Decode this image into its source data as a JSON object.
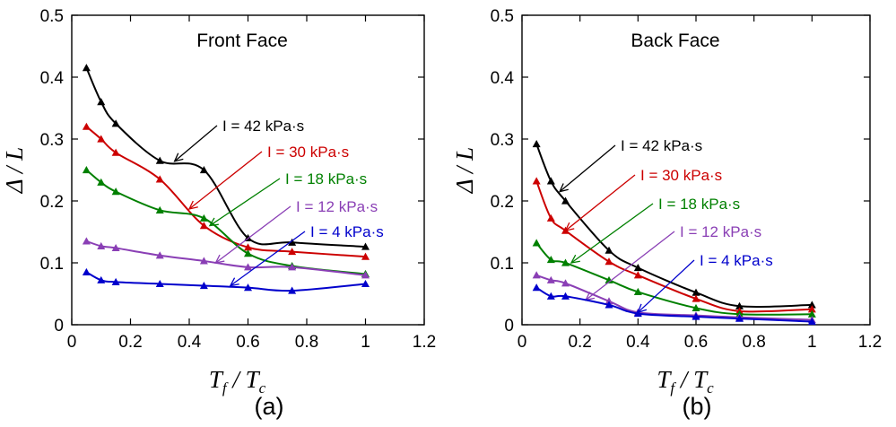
{
  "panels": [
    {
      "label": "(a)",
      "chart_data": {
        "type": "line",
        "title": "Front Face",
        "xlabel": "T_f / T_c",
        "ylabel": "Δ / L",
        "xlim": [
          0,
          1.2
        ],
        "ylim": [
          0,
          0.5
        ],
        "xticks": [
          "0",
          "0.2",
          "0.4",
          "0.6",
          "0.8",
          "1",
          "1.2"
        ],
        "yticks": [
          "0",
          "0.1",
          "0.2",
          "0.3",
          "0.4",
          "0.5"
        ],
        "grid": false,
        "marker": "triangle",
        "series": [
          {
            "name": "I = 42 kPa·s",
            "color": "#000000",
            "x": [
              0.05,
              0.1,
              0.15,
              0.3,
              0.45,
              0.6,
              0.75,
              1.0
            ],
            "y": [
              0.415,
              0.36,
              0.325,
              0.265,
              0.25,
              0.14,
              0.133,
              0.126
            ],
            "annotation_target": [
              0.35,
              0.264
            ]
          },
          {
            "name": "I = 30 kPa·s",
            "color": "#cc0000",
            "x": [
              0.05,
              0.1,
              0.15,
              0.3,
              0.45,
              0.6,
              0.75,
              1.0
            ],
            "y": [
              0.32,
              0.3,
              0.278,
              0.235,
              0.16,
              0.125,
              0.118,
              0.11
            ],
            "annotation_target": [
              0.4,
              0.187
            ]
          },
          {
            "name": "I = 18 kPa·s",
            "color": "#008000",
            "x": [
              0.05,
              0.1,
              0.15,
              0.3,
              0.45,
              0.6,
              0.75,
              1.0
            ],
            "y": [
              0.25,
              0.23,
              0.215,
              0.185,
              0.172,
              0.115,
              0.095,
              0.082
            ],
            "annotation_target": [
              0.47,
              0.16
            ]
          },
          {
            "name": "I = 12 kPa·s",
            "color": "#8a3fb5",
            "x": [
              0.05,
              0.1,
              0.15,
              0.3,
              0.45,
              0.6,
              0.75,
              1.0
            ],
            "y": [
              0.135,
              0.127,
              0.124,
              0.112,
              0.103,
              0.093,
              0.093,
              0.08
            ],
            "annotation_target": [
              0.49,
              0.1
            ]
          },
          {
            "name": "I = 4 kPa·s",
            "color": "#0000cc",
            "x": [
              0.05,
              0.1,
              0.15,
              0.3,
              0.45,
              0.6,
              0.75,
              1.0
            ],
            "y": [
              0.085,
              0.072,
              0.069,
              0.066,
              0.063,
              0.06,
              0.055,
              0.066
            ],
            "annotation_target": [
              0.54,
              0.063
            ]
          }
        ]
      }
    },
    {
      "label": "(b)",
      "chart_data": {
        "type": "line",
        "title": "Back Face",
        "xlabel": "T_f / T_c",
        "ylabel": "Δ / L",
        "xlim": [
          0,
          1.2
        ],
        "ylim": [
          0,
          0.5
        ],
        "xticks": [
          "0",
          "0.2",
          "0.4",
          "0.6",
          "0.8",
          "1",
          "1.2"
        ],
        "yticks": [
          "0",
          "0.1",
          "0.2",
          "0.3",
          "0.4",
          "0.5"
        ],
        "grid": false,
        "marker": "triangle",
        "series": [
          {
            "name": "I = 42 kPa·s",
            "color": "#000000",
            "x": [
              0.05,
              0.1,
              0.15,
              0.3,
              0.4,
              0.6,
              0.75,
              1.0
            ],
            "y": [
              0.292,
              0.232,
              0.2,
              0.12,
              0.092,
              0.052,
              0.03,
              0.032
            ],
            "annotation_target": [
              0.13,
              0.215
            ]
          },
          {
            "name": "I = 30 kPa·s",
            "color": "#cc0000",
            "x": [
              0.05,
              0.1,
              0.15,
              0.3,
              0.4,
              0.6,
              0.75,
              1.0
            ],
            "y": [
              0.232,
              0.172,
              0.152,
              0.102,
              0.08,
              0.042,
              0.022,
              0.025
            ],
            "annotation_target": [
              0.15,
              0.152
            ]
          },
          {
            "name": "I = 18 kPa·s",
            "color": "#008000",
            "x": [
              0.05,
              0.1,
              0.15,
              0.3,
              0.4,
              0.6,
              0.75,
              1.0
            ],
            "y": [
              0.132,
              0.105,
              0.1,
              0.072,
              0.053,
              0.027,
              0.017,
              0.017
            ],
            "annotation_target": [
              0.17,
              0.1
            ]
          },
          {
            "name": "I = 12 kPa·s",
            "color": "#8a3fb5",
            "x": [
              0.05,
              0.1,
              0.15,
              0.3,
              0.4,
              0.6,
              0.75,
              1.0
            ],
            "y": [
              0.08,
              0.072,
              0.067,
              0.038,
              0.02,
              0.015,
              0.012,
              0.008
            ],
            "annotation_target": [
              0.22,
              0.04
            ]
          },
          {
            "name": "I = 4 kPa·s",
            "color": "#0000cc",
            "x": [
              0.05,
              0.1,
              0.15,
              0.3,
              0.4,
              0.6,
              0.75,
              1.0
            ],
            "y": [
              0.06,
              0.046,
              0.046,
              0.032,
              0.018,
              0.013,
              0.01,
              0.005
            ],
            "annotation_target": [
              0.4,
              0.02
            ]
          }
        ]
      }
    }
  ]
}
